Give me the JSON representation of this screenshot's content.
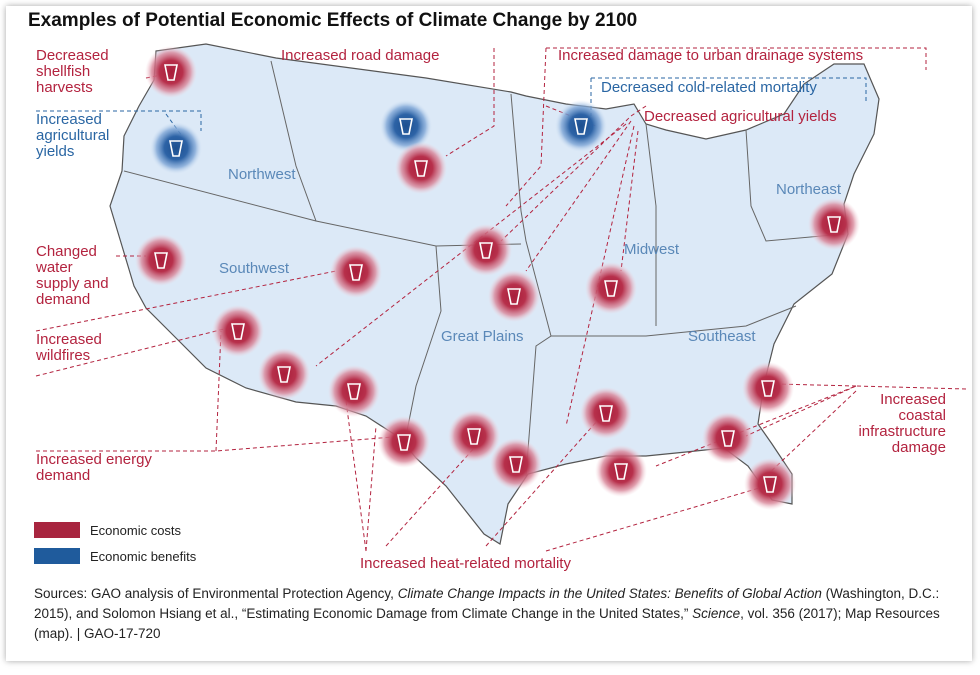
{
  "title": "Examples of Potential Economic Effects of Climate Change by 2100",
  "regions": [
    "Northwest",
    "Southwest",
    "Great Plains",
    "Midwest",
    "Southeast",
    "Northeast"
  ],
  "effects": [
    {
      "lines": [
        "Decreased",
        "shellfish",
        "harvests"
      ],
      "color": "#b3233f"
    },
    {
      "lines": [
        "Increased",
        "agricultural",
        "yields"
      ],
      "color": "#2a66a3"
    },
    {
      "lines": [
        "Increased road damage"
      ],
      "color": "#b3233f"
    },
    {
      "lines": [
        "Increased damage to urban drainage systems"
      ],
      "color": "#b3233f"
    },
    {
      "lines": [
        "Decreased cold-related mortality"
      ],
      "color": "#2a66a3"
    },
    {
      "lines": [
        "Decreased agricultural yields"
      ],
      "color": "#b3233f"
    },
    {
      "lines": [
        "Changed",
        "water",
        "supply and",
        "demand"
      ],
      "color": "#b3233f"
    },
    {
      "lines": [
        "Increased",
        "wildfires"
      ],
      "color": "#b3233f"
    },
    {
      "lines": [
        "Increased energy",
        "demand"
      ],
      "color": "#b3233f"
    },
    {
      "lines": [
        "Increased",
        "coastal",
        "infrastructure",
        "damage"
      ],
      "color": "#b3233f"
    },
    {
      "lines": [
        "Increased heat-related mortality"
      ],
      "color": "#b3233f"
    }
  ],
  "legend": [
    {
      "label": "Economic costs",
      "color": "#a8253f"
    },
    {
      "label": "Economic benefits",
      "color": "#1f5b9c"
    }
  ],
  "source": [
    "Sources: GAO analysis of Environmental Protection Agency, ",
    "Climate Change Impacts in the United States: Benefits of Global Action",
    " (Washington, D.C.: 2015), and Solomon Hsiang et al., “Estimating Economic Damage from Climate Change in the United States,” ",
    "Science",
    ", vol. 356 (2017); Map Resources (map).  |  GAO-17-720"
  ]
}
